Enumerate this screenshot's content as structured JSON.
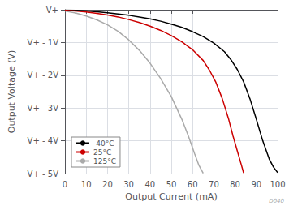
{
  "chart_data": {
    "type": "line",
    "xlabel": "Output Current (mA)",
    "ylabel": "Output Voltage (V)",
    "xlim": [
      0,
      100
    ],
    "ylim": [
      -5,
      0
    ],
    "xticks": [
      0,
      10,
      20,
      30,
      40,
      50,
      60,
      70,
      80,
      90,
      100
    ],
    "yticks": [
      {
        "value": 0,
        "label": "V+"
      },
      {
        "value": -1,
        "label": "V+ - 1V"
      },
      {
        "value": -2,
        "label": "V+ - 2V"
      },
      {
        "value": -3,
        "label": "V+ - 3V"
      },
      {
        "value": -4,
        "label": "V+ - 4V"
      },
      {
        "value": -5,
        "label": "V+ - 5V"
      }
    ],
    "grid": true,
    "legend": "lower left",
    "annotations": [
      "D040"
    ],
    "series": [
      {
        "name": "-40°C",
        "color": "#000000",
        "x": [
          0,
          5,
          10,
          15,
          20,
          25,
          30,
          35,
          40,
          45,
          50,
          55,
          60,
          65,
          70,
          75,
          78,
          81,
          84,
          87,
          90,
          93,
          96,
          98,
          100
        ],
        "values": [
          -0.01,
          -0.02,
          -0.04,
          -0.06,
          -0.09,
          -0.13,
          -0.17,
          -0.22,
          -0.28,
          -0.35,
          -0.44,
          -0.54,
          -0.67,
          -0.82,
          -1.02,
          -1.28,
          -1.52,
          -1.82,
          -2.2,
          -2.72,
          -3.35,
          -4.0,
          -4.55,
          -4.8,
          -4.97
        ]
      },
      {
        "name": "25°C",
        "color": "#cc0000",
        "x": [
          0,
          5,
          10,
          15,
          20,
          25,
          30,
          35,
          40,
          45,
          50,
          55,
          60,
          65,
          68,
          71,
          74,
          77,
          79,
          81,
          83,
          84
        ],
        "values": [
          -0.02,
          -0.04,
          -0.07,
          -0.11,
          -0.16,
          -0.22,
          -0.3,
          -0.39,
          -0.5,
          -0.63,
          -0.79,
          -0.98,
          -1.22,
          -1.55,
          -1.85,
          -2.22,
          -2.72,
          -3.35,
          -3.85,
          -4.3,
          -4.75,
          -4.98
        ]
      },
      {
        "name": "125°C",
        "color": "#aaaaaa",
        "x": [
          0,
          5,
          10,
          15,
          20,
          25,
          30,
          35,
          40,
          45,
          50,
          55,
          58,
          61,
          63,
          65
        ],
        "values": [
          -0.04,
          -0.1,
          -0.19,
          -0.31,
          -0.46,
          -0.66,
          -0.92,
          -1.24,
          -1.63,
          -2.1,
          -2.65,
          -3.35,
          -3.85,
          -4.4,
          -4.75,
          -4.99
        ]
      }
    ]
  }
}
